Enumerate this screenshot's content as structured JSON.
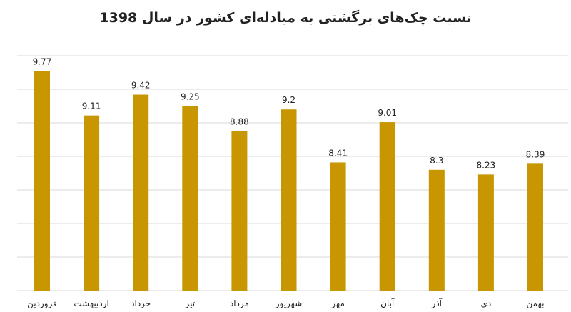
{
  "chart_data": {
    "type": "bar",
    "title": "نسبت چک‌های برگشتی به مبادله‌ای کشور در سال 1398",
    "categories": [
      "فروردین",
      "اردیبهشت",
      "خرداد",
      "تیر",
      "مرداد",
      "شهریور",
      "مهر",
      "آبان",
      "آذر",
      "دی",
      "بهمن"
    ],
    "values": [
      9.77,
      9.11,
      9.42,
      9.25,
      8.88,
      9.2,
      8.41,
      9.01,
      8.3,
      8.23,
      8.39
    ],
    "value_labels": [
      "9.77",
      "9.11",
      "9.42",
      "9.25",
      "8.88",
      "9.2",
      "8.41",
      "9.01",
      "8.3",
      "8.23",
      "8.39"
    ],
    "ylim": [
      6.5,
      10
    ],
    "grid": true,
    "bar_color": "#c79600",
    "grid_color": "#d9d9d9"
  }
}
